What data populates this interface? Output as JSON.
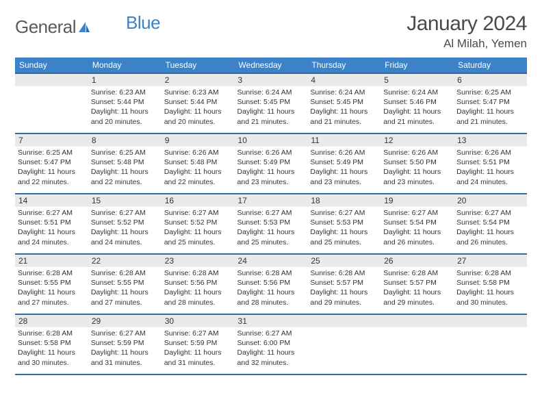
{
  "brand": {
    "part1": "General",
    "part2": "Blue"
  },
  "title": "January 2024",
  "location": "Al Milah, Yemen",
  "colors": {
    "header_band": "#3b82c9",
    "header_border": "#2f6aa4",
    "datenum_bg": "#e9eaea",
    "text": "#333333",
    "title_text": "#4a4a4a",
    "logo_gray": "#5a5a5a",
    "logo_blue": "#3b82c9",
    "page_bg": "#ffffff"
  },
  "typography": {
    "title_fontsize_pt": 22,
    "location_fontsize_pt": 13,
    "dayhead_fontsize_pt": 9,
    "body_fontsize_pt": 8
  },
  "days_of_week": [
    "Sunday",
    "Monday",
    "Tuesday",
    "Wednesday",
    "Thursday",
    "Friday",
    "Saturday"
  ],
  "weeks": [
    [
      {
        "date": "",
        "lines": []
      },
      {
        "date": "1",
        "lines": [
          "Sunrise: 6:23 AM",
          "Sunset: 5:44 PM",
          "Daylight: 11 hours and 20 minutes."
        ]
      },
      {
        "date": "2",
        "lines": [
          "Sunrise: 6:23 AM",
          "Sunset: 5:44 PM",
          "Daylight: 11 hours and 20 minutes."
        ]
      },
      {
        "date": "3",
        "lines": [
          "Sunrise: 6:24 AM",
          "Sunset: 5:45 PM",
          "Daylight: 11 hours and 21 minutes."
        ]
      },
      {
        "date": "4",
        "lines": [
          "Sunrise: 6:24 AM",
          "Sunset: 5:45 PM",
          "Daylight: 11 hours and 21 minutes."
        ]
      },
      {
        "date": "5",
        "lines": [
          "Sunrise: 6:24 AM",
          "Sunset: 5:46 PM",
          "Daylight: 11 hours and 21 minutes."
        ]
      },
      {
        "date": "6",
        "lines": [
          "Sunrise: 6:25 AM",
          "Sunset: 5:47 PM",
          "Daylight: 11 hours and 21 minutes."
        ]
      }
    ],
    [
      {
        "date": "7",
        "lines": [
          "Sunrise: 6:25 AM",
          "Sunset: 5:47 PM",
          "Daylight: 11 hours and 22 minutes."
        ]
      },
      {
        "date": "8",
        "lines": [
          "Sunrise: 6:25 AM",
          "Sunset: 5:48 PM",
          "Daylight: 11 hours and 22 minutes."
        ]
      },
      {
        "date": "9",
        "lines": [
          "Sunrise: 6:26 AM",
          "Sunset: 5:48 PM",
          "Daylight: 11 hours and 22 minutes."
        ]
      },
      {
        "date": "10",
        "lines": [
          "Sunrise: 6:26 AM",
          "Sunset: 5:49 PM",
          "Daylight: 11 hours and 23 minutes."
        ]
      },
      {
        "date": "11",
        "lines": [
          "Sunrise: 6:26 AM",
          "Sunset: 5:49 PM",
          "Daylight: 11 hours and 23 minutes."
        ]
      },
      {
        "date": "12",
        "lines": [
          "Sunrise: 6:26 AM",
          "Sunset: 5:50 PM",
          "Daylight: 11 hours and 23 minutes."
        ]
      },
      {
        "date": "13",
        "lines": [
          "Sunrise: 6:26 AM",
          "Sunset: 5:51 PM",
          "Daylight: 11 hours and 24 minutes."
        ]
      }
    ],
    [
      {
        "date": "14",
        "lines": [
          "Sunrise: 6:27 AM",
          "Sunset: 5:51 PM",
          "Daylight: 11 hours and 24 minutes."
        ]
      },
      {
        "date": "15",
        "lines": [
          "Sunrise: 6:27 AM",
          "Sunset: 5:52 PM",
          "Daylight: 11 hours and 24 minutes."
        ]
      },
      {
        "date": "16",
        "lines": [
          "Sunrise: 6:27 AM",
          "Sunset: 5:52 PM",
          "Daylight: 11 hours and 25 minutes."
        ]
      },
      {
        "date": "17",
        "lines": [
          "Sunrise: 6:27 AM",
          "Sunset: 5:53 PM",
          "Daylight: 11 hours and 25 minutes."
        ]
      },
      {
        "date": "18",
        "lines": [
          "Sunrise: 6:27 AM",
          "Sunset: 5:53 PM",
          "Daylight: 11 hours and 25 minutes."
        ]
      },
      {
        "date": "19",
        "lines": [
          "Sunrise: 6:27 AM",
          "Sunset: 5:54 PM",
          "Daylight: 11 hours and 26 minutes."
        ]
      },
      {
        "date": "20",
        "lines": [
          "Sunrise: 6:27 AM",
          "Sunset: 5:54 PM",
          "Daylight: 11 hours and 26 minutes."
        ]
      }
    ],
    [
      {
        "date": "21",
        "lines": [
          "Sunrise: 6:28 AM",
          "Sunset: 5:55 PM",
          "Daylight: 11 hours and 27 minutes."
        ]
      },
      {
        "date": "22",
        "lines": [
          "Sunrise: 6:28 AM",
          "Sunset: 5:55 PM",
          "Daylight: 11 hours and 27 minutes."
        ]
      },
      {
        "date": "23",
        "lines": [
          "Sunrise: 6:28 AM",
          "Sunset: 5:56 PM",
          "Daylight: 11 hours and 28 minutes."
        ]
      },
      {
        "date": "24",
        "lines": [
          "Sunrise: 6:28 AM",
          "Sunset: 5:56 PM",
          "Daylight: 11 hours and 28 minutes."
        ]
      },
      {
        "date": "25",
        "lines": [
          "Sunrise: 6:28 AM",
          "Sunset: 5:57 PM",
          "Daylight: 11 hours and 29 minutes."
        ]
      },
      {
        "date": "26",
        "lines": [
          "Sunrise: 6:28 AM",
          "Sunset: 5:57 PM",
          "Daylight: 11 hours and 29 minutes."
        ]
      },
      {
        "date": "27",
        "lines": [
          "Sunrise: 6:28 AM",
          "Sunset: 5:58 PM",
          "Daylight: 11 hours and 30 minutes."
        ]
      }
    ],
    [
      {
        "date": "28",
        "lines": [
          "Sunrise: 6:28 AM",
          "Sunset: 5:58 PM",
          "Daylight: 11 hours and 30 minutes."
        ]
      },
      {
        "date": "29",
        "lines": [
          "Sunrise: 6:27 AM",
          "Sunset: 5:59 PM",
          "Daylight: 11 hours and 31 minutes."
        ]
      },
      {
        "date": "30",
        "lines": [
          "Sunrise: 6:27 AM",
          "Sunset: 5:59 PM",
          "Daylight: 11 hours and 31 minutes."
        ]
      },
      {
        "date": "31",
        "lines": [
          "Sunrise: 6:27 AM",
          "Sunset: 6:00 PM",
          "Daylight: 11 hours and 32 minutes."
        ]
      },
      {
        "date": "",
        "lines": []
      },
      {
        "date": "",
        "lines": []
      },
      {
        "date": "",
        "lines": []
      }
    ]
  ]
}
